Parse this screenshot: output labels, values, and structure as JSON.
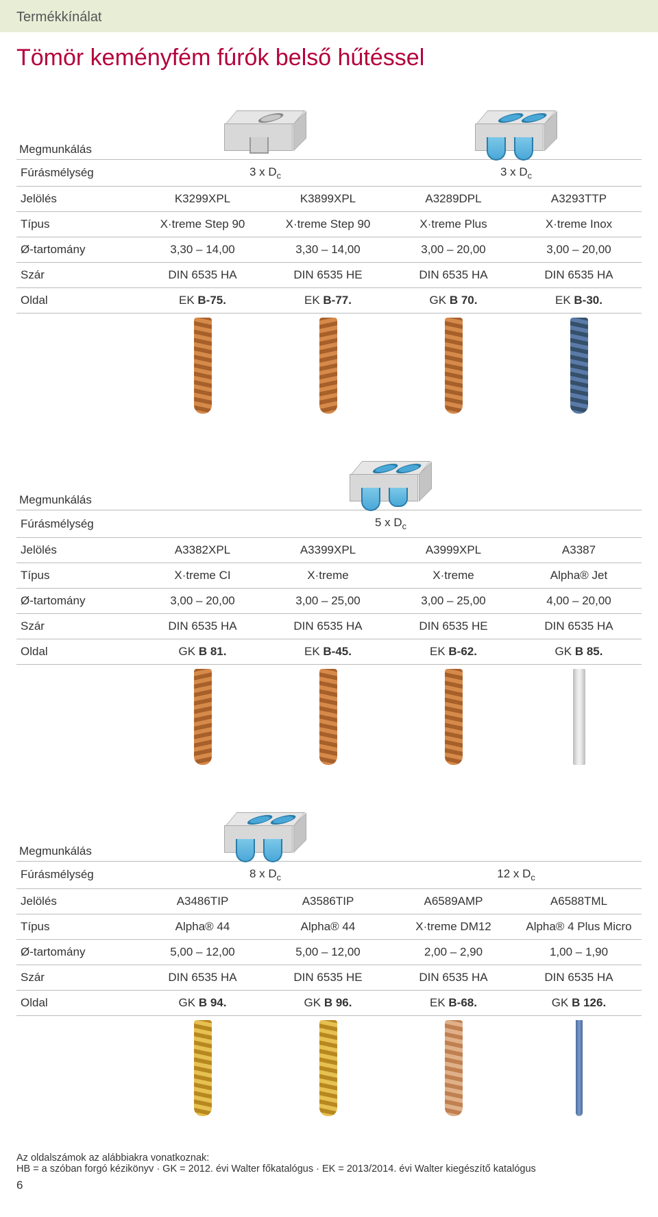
{
  "tab": "Termékkínálat",
  "title": "Tömör keményfém fúrók belső hűtéssel",
  "rowlabels": {
    "meg": "Megmunkálás",
    "fur": "Fúrásmélység",
    "jel": "Jelölés",
    "tip": "Típus",
    "ota": "Ø-tartomány",
    "szar": "Szár",
    "oldal": "Oldal"
  },
  "tables": [
    {
      "depth_groups": [
        "3 x D",
        "3 x D"
      ],
      "depth_spans": [
        2,
        2
      ],
      "icons": [
        "single-flat",
        "double-round"
      ],
      "columns": [
        {
          "jel": "K3299XPL",
          "tip": "X·treme Step 90",
          "ota": "3,30 – 14,00",
          "szar": "DIN 6535 HA",
          "oldal_pre": "EK ",
          "oldal_bold": "B-75.",
          "drill": "copper"
        },
        {
          "jel": "K3899XPL",
          "tip": "X·treme Step 90",
          "ota": "3,30 – 14,00",
          "szar": "DIN 6535 HE",
          "oldal_pre": "EK ",
          "oldal_bold": "B-77.",
          "drill": "copper2"
        },
        {
          "jel": "A3289DPL",
          "tip": "X·treme Plus",
          "ota": "3,00 – 20,00",
          "szar": "DIN 6535 HA",
          "oldal_pre": "GK ",
          "oldal_bold": "B 70.",
          "drill": "copper"
        },
        {
          "jel": "A3293TTP",
          "tip": "X·treme Inox",
          "ota": "3,00 – 20,00",
          "szar": "DIN 6535 HA",
          "oldal_pre": "EK ",
          "oldal_bold": "B-30.",
          "drill": "blue"
        }
      ]
    },
    {
      "depth_groups": [
        "5 x D"
      ],
      "depth_spans": [
        4
      ],
      "icons": [
        "double-mixed"
      ],
      "columns": [
        {
          "jel": "A3382XPL",
          "tip": "X·treme CI",
          "ota": "3,00 – 20,00",
          "szar": "DIN 6535 HA",
          "oldal_pre": "GK ",
          "oldal_bold": "B 81.",
          "drill": "copper2"
        },
        {
          "jel": "A3399XPL",
          "tip": "X·treme",
          "ota": "3,00 – 25,00",
          "szar": "DIN 6535 HA",
          "oldal_pre": "EK ",
          "oldal_bold": "B-45.",
          "drill": "copper"
        },
        {
          "jel": "A3999XPL",
          "tip": "X·treme",
          "ota": "3,00 – 25,00",
          "szar": "DIN 6535 HE",
          "oldal_pre": "EK ",
          "oldal_bold": "B-62.",
          "drill": "copper"
        },
        {
          "jel": "A3387",
          "tip": "Alpha® Jet",
          "ota": "4,00 – 20,00",
          "szar": "DIN 6535 HA",
          "oldal_pre": "GK ",
          "oldal_bold": "B 85.",
          "drill": "steel"
        }
      ]
    },
    {
      "depth_groups": [
        "8 x D",
        "12 x D"
      ],
      "depth_spans": [
        2,
        2
      ],
      "icons": [
        "double-round"
      ],
      "columns": [
        {
          "jel": "A3486TIP",
          "tip": "Alpha® 44",
          "ota": "5,00 – 12,00",
          "szar": "DIN 6535 HA",
          "oldal_pre": "GK ",
          "oldal_bold": "B 94.",
          "drill": "gold"
        },
        {
          "jel": "A3586TIP",
          "tip": "Alpha® 44",
          "ota": "5,00 – 12,00",
          "szar": "DIN 6535 HE",
          "oldal_pre": "GK ",
          "oldal_bold": "B 96.",
          "drill": "gold"
        },
        {
          "jel": "A6589AMP",
          "tip": "X·treme DM12",
          "ota": "2,00 – 2,90",
          "szar": "DIN 6535 HA",
          "oldal_pre": "EK ",
          "oldal_bold": "B-68.",
          "drill": "lightcopper"
        },
        {
          "jel": "A6588TML",
          "tip": "Alpha® 4 Plus Micro",
          "ota": "1,00 – 1,90",
          "szar": "DIN 6535 HA",
          "oldal_pre": "GK ",
          "oldal_bold": "B 126.",
          "drill": "thinblue"
        }
      ]
    }
  ],
  "footnote_line1": "Az oldalszámok az alábbiakra vonatkoznak:",
  "footnote_line2": "HB = a szóban forgó kézikönyv · GK = 2012. évi Walter főkatalógus · EK = 2013/2014. évi Walter kiegészítő katalógus",
  "pagenum": "6",
  "colors": {
    "accent": "#b4003c",
    "tab_bg": "#e8eed6",
    "border": "#bbbbbb"
  }
}
